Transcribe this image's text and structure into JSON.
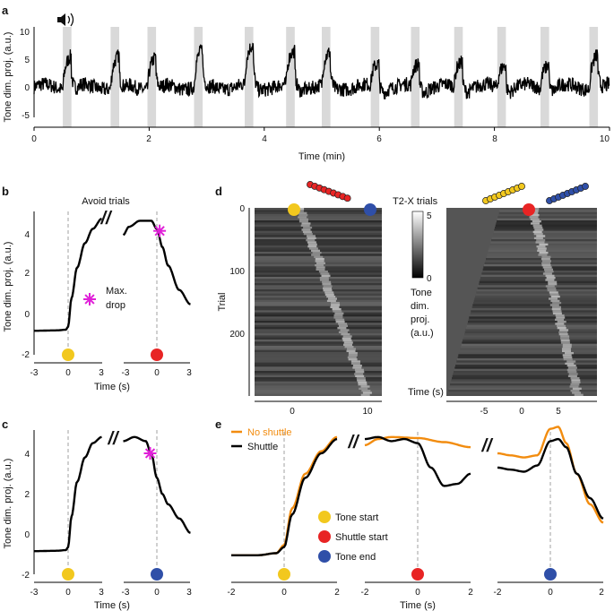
{
  "colors": {
    "trace": "#000000",
    "no_shuttle": "#f28c0f",
    "tone_start": "#f2c81e",
    "shuttle_start": "#e82424",
    "tone_end": "#2f4fa8",
    "max_drop": "#e020d8",
    "shade": "#d9d9d9",
    "dash": "#a0a0a0"
  },
  "icons": {
    "speaker": "speaker-icon"
  },
  "chart_data": [
    {
      "panel": "a",
      "type": "line",
      "xlabel": "Time (min)",
      "ylabel": "Tone dim. proj. (a.u.)",
      "xlim": [
        0,
        10
      ],
      "ylim": [
        -5,
        12
      ],
      "xticks": [
        "0",
        "2",
        "4",
        "6",
        "8",
        "10"
      ],
      "yticks": [
        "-5",
        "0",
        "5",
        "10"
      ],
      "tone_periods_min": [
        0.5,
        1.33,
        1.97,
        2.78,
        3.66,
        4.38,
        5.0,
        5.85,
        6.55,
        7.3,
        8.05,
        8.8,
        9.65
      ],
      "tone_duration_min": 0.15,
      "peak_heights": [
        6,
        5.5,
        5.5,
        6.5,
        7.5,
        6.5,
        6,
        4.5,
        4.5,
        5,
        4.5,
        4.5,
        6
      ]
    },
    {
      "panel": "b",
      "type": "line",
      "title": "Avoid trials",
      "xlabel": "Time (s)",
      "ylabel": "Tone dim. proj. (a.u.)",
      "xticks_left": [
        "-3",
        "0",
        "3"
      ],
      "xticks_right": [
        "-3",
        "0",
        "3"
      ],
      "yticks": [
        "-2",
        "0",
        "2",
        "4"
      ],
      "ylim": [
        -2,
        5
      ],
      "annotation": "Max. drop",
      "segments": [
        {
          "aligned_to": "tone_start",
          "x": [
            -3,
            -1,
            -0.2,
            0,
            0.3,
            0.8,
            1.5,
            2.2,
            3
          ],
          "y": [
            -0.8,
            -0.78,
            -0.75,
            -0.6,
            0.8,
            2.3,
            3.5,
            4.2,
            4.7
          ]
        },
        {
          "aligned_to": "shuttle_start",
          "x": [
            -3,
            -2.5,
            -1.5,
            -0.5,
            0,
            0.5,
            1,
            2,
            3
          ],
          "y": [
            3.9,
            4.3,
            4.6,
            4.6,
            4.2,
            3.3,
            2.4,
            1.2,
            0.5
          ]
        }
      ],
      "max_drop_marker": {
        "x": 0.25,
        "y": 4.1
      }
    },
    {
      "panel": "c",
      "type": "line",
      "xlabel": "Time (s)",
      "ylabel": "Tone dim. proj. (a.u.)",
      "xticks_left": [
        "-3",
        "0",
        "3"
      ],
      "xticks_right": [
        "-3",
        "0",
        "3"
      ],
      "yticks": [
        "-2",
        "0",
        "2",
        "4"
      ],
      "ylim": [
        -2,
        5
      ],
      "segments": [
        {
          "aligned_to": "tone_start",
          "x": [
            -3,
            -1,
            -0.2,
            0,
            0.3,
            0.8,
            1.5,
            2.2,
            3
          ],
          "y": [
            -0.8,
            -0.78,
            -0.75,
            -0.6,
            0.9,
            2.6,
            3.8,
            4.5,
            4.8
          ]
        },
        {
          "aligned_to": "tone_end",
          "x": [
            -3,
            -2,
            -1,
            -0.5,
            0,
            0.5,
            1,
            2,
            3
          ],
          "y": [
            4.6,
            4.8,
            4.6,
            4.0,
            2.8,
            2.0,
            1.5,
            0.8,
            0.1
          ]
        }
      ],
      "max_drop_marker": {
        "x": -0.6,
        "y": 4.0
      }
    },
    {
      "panel": "d",
      "type": "heatmap",
      "title": "T2-X trials",
      "xlabel": "Time (s)",
      "ylabel": "Trial",
      "colorbar_label": "Tone dim. proj. (a.u.)",
      "colorbar_ticks": [
        "5",
        "0"
      ],
      "yticks": [
        "0",
        "100",
        "200"
      ],
      "xticks_left": [
        "0",
        "10"
      ],
      "xticks_right": [
        "-5",
        "0",
        "5"
      ],
      "n_trials": 260
    },
    {
      "panel": "e",
      "type": "line",
      "xlabel": "Time (s)",
      "xticks": [
        "-2",
        "0",
        "2"
      ],
      "series": [
        {
          "name": "No shuttle",
          "color": "#f28c0f",
          "segments": [
            {
              "x": [
                -2,
                -1,
                -0.3,
                0,
                0.3,
                0.8,
                1.4,
                2
              ],
              "y": [
                -1.0,
                -1.0,
                -0.9,
                -0.5,
                1.3,
                3.0,
                4.1,
                4.8
              ]
            },
            {
              "x": [
                -2,
                -1.5,
                -1,
                0,
                1,
                2
              ],
              "y": [
                4.4,
                4.7,
                4.8,
                4.75,
                4.55,
                4.3
              ]
            },
            {
              "x": [
                -2,
                -1.5,
                -1,
                -0.5,
                0,
                0.3,
                0.6,
                1,
                1.5,
                2
              ],
              "y": [
                4.0,
                3.9,
                3.8,
                3.9,
                5.2,
                5.3,
                4.5,
                3.0,
                1.5,
                0.6
              ]
            }
          ]
        },
        {
          "name": "Shuttle",
          "color": "#000000",
          "segments": [
            {
              "x": [
                -2,
                -1,
                -0.3,
                0,
                0.3,
                0.8,
                1.4,
                2
              ],
              "y": [
                -1.0,
                -1.0,
                -0.9,
                -0.6,
                1.0,
                2.8,
                4.0,
                4.7
              ]
            },
            {
              "x": [
                -2,
                -1.5,
                -1,
                -0.5,
                0,
                0.5,
                1,
                1.5,
                2
              ],
              "y": [
                4.7,
                4.8,
                4.6,
                4.7,
                4.5,
                3.3,
                2.4,
                2.5,
                3.0
              ]
            },
            {
              "x": [
                -2,
                -1.5,
                -1,
                -0.5,
                0,
                0.3,
                0.6,
                1,
                1.5,
                2
              ],
              "y": [
                3.3,
                3.2,
                3.1,
                3.4,
                4.6,
                4.7,
                4.3,
                3.0,
                1.8,
                0.8
              ]
            }
          ]
        }
      ]
    }
  ],
  "panel_letters": {
    "a": "a",
    "b": "b",
    "c": "c",
    "d": "d",
    "e": "e"
  },
  "labels": {
    "axis_a_x": "Time (min)",
    "axis_a_y": "Tone dim. proj. (a.u.)",
    "avoid_trials": "Avoid trials",
    "axis_b_y": "Tone dim. proj. (a.u.)",
    "axis_b_x": "Time (s)",
    "max_drop_1": "Max.",
    "max_drop_2": "drop",
    "axis_c_y": "Tone dim. proj. (a.u.)",
    "axis_c_x": "Time (s)",
    "t2x": "T2-X trials",
    "trial": "Trial",
    "cb_1": "Tone",
    "cb_2": "dim.",
    "cb_3": "proj.",
    "cb_4": "(a.u.)",
    "axis_d_x": "Time (s)",
    "axis_e_x": "Time (s)",
    "legend_no_shuttle": "No shuttle",
    "legend_shuttle": "Shuttle",
    "legend_tone_start": "Tone start",
    "legend_shuttle_start": "Shuttle start",
    "legend_tone_end": "Tone end",
    "break_mark": "//"
  },
  "ticks": {
    "a_y": [
      "10",
      "5",
      "0",
      "-5"
    ],
    "a_x": [
      "0",
      "2",
      "4",
      "6",
      "8",
      "10"
    ],
    "bc_y": [
      "4",
      "2",
      "0",
      "-2"
    ],
    "bc_x": [
      "-3",
      "0",
      "3",
      "-3",
      "0",
      "3"
    ],
    "d_y": [
      "0",
      "100",
      "200"
    ],
    "d_xl": [
      "0",
      "10"
    ],
    "d_xr": [
      "-5",
      "0",
      "5"
    ],
    "d_cb": [
      "5",
      "0"
    ],
    "e_x": [
      "-2",
      "0",
      "2",
      "-2",
      "0",
      "2",
      "-2",
      "0",
      "2"
    ]
  }
}
